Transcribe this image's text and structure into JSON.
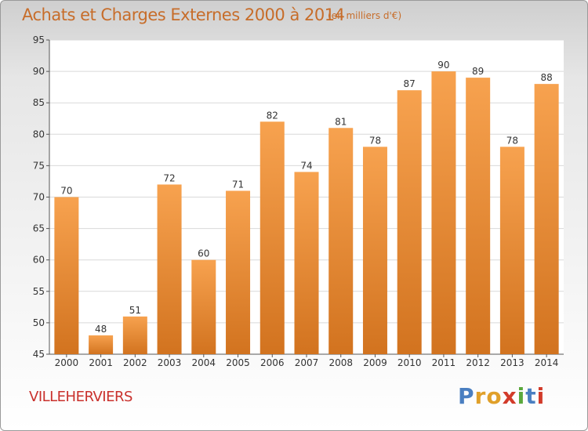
{
  "header": {
    "title": "Achats et Charges Externes 2000 à 2014",
    "subtitle": "(en milliers d'€)"
  },
  "footer": {
    "commune": "VILLEHERVIERS",
    "logo_text": "Proxiti",
    "logo_colors": [
      "#4a7fc1",
      "#e0a02a",
      "#e0a02a",
      "#d23b2a",
      "#5aa83c",
      "#4a7fc1",
      "#d23b2a"
    ]
  },
  "colors": {
    "bar_top": "#f7a24f",
    "bar_bottom": "#d2731f",
    "grid": "#d9d9d9",
    "axis": "#555555",
    "title": "#c76d2a",
    "commune": "#c9302c"
  },
  "chart_data": {
    "type": "bar",
    "title": "Achats et Charges Externes 2000 à 2014",
    "subtitle": "(en milliers d'€)",
    "categories": [
      "2000",
      "2001",
      "2002",
      "2003",
      "2004",
      "2005",
      "2006",
      "2007",
      "2008",
      "2009",
      "2010",
      "2011",
      "2012",
      "2013",
      "2014"
    ],
    "values": [
      70,
      48,
      51,
      72,
      60,
      71,
      82,
      74,
      81,
      78,
      87,
      90,
      89,
      78,
      88
    ],
    "ylim": [
      45,
      95
    ],
    "yticks": [
      45,
      50,
      55,
      60,
      65,
      70,
      75,
      80,
      85,
      90,
      95
    ],
    "grid": true,
    "xlabel": "",
    "ylabel": ""
  }
}
